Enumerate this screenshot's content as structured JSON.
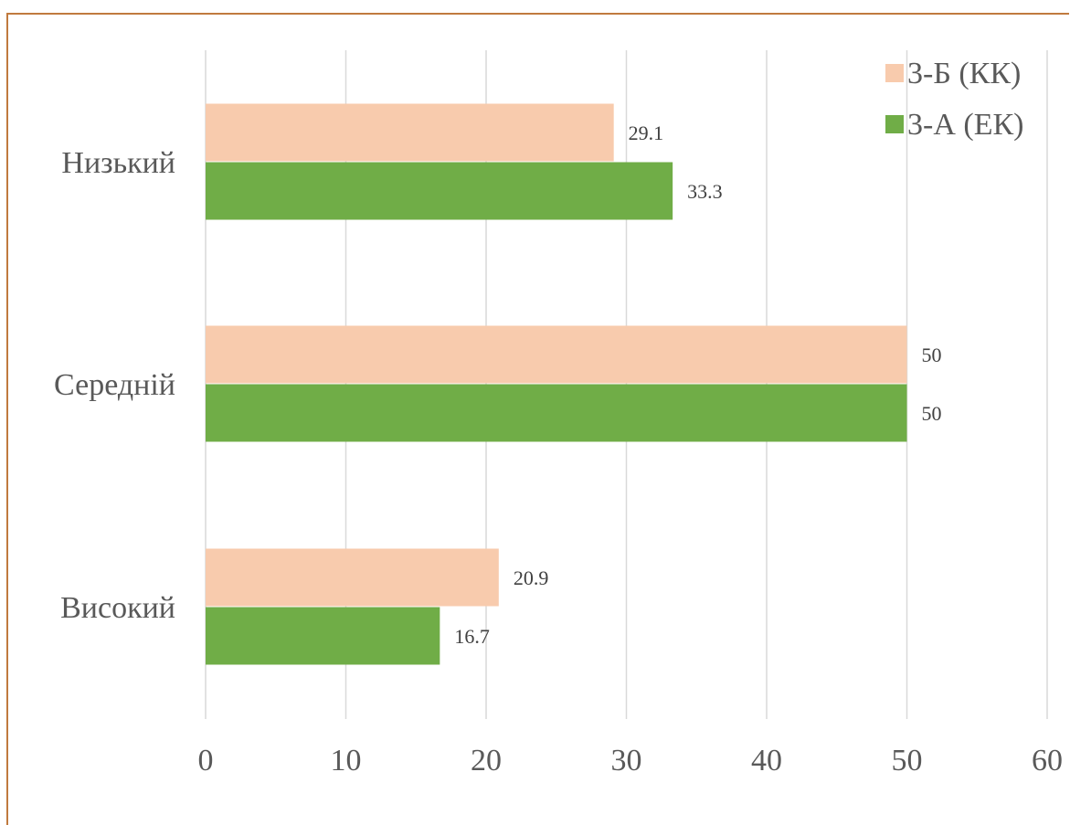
{
  "chart_data": {
    "type": "bar",
    "orientation": "horizontal",
    "title": "",
    "xlabel": "",
    "ylabel": "",
    "categories": [
      "Високий",
      "Середній",
      "Низький"
    ],
    "series": [
      {
        "name": "3-Б (КК)",
        "values": [
          20.9,
          50,
          29.1
        ],
        "color": "#f8cbad"
      },
      {
        "name": "3-А (ЕК)",
        "values": [
          16.7,
          50,
          33.3
        ],
        "color": "#70ad47"
      }
    ],
    "xlim": [
      0,
      60
    ],
    "xticks": [
      0,
      10,
      20,
      30,
      40,
      50,
      60
    ],
    "grid": "vertical",
    "legend_position": "top-right",
    "data_labels": true,
    "gridline_color": "#d9d9d9",
    "frame_color": "#c07a3e"
  }
}
